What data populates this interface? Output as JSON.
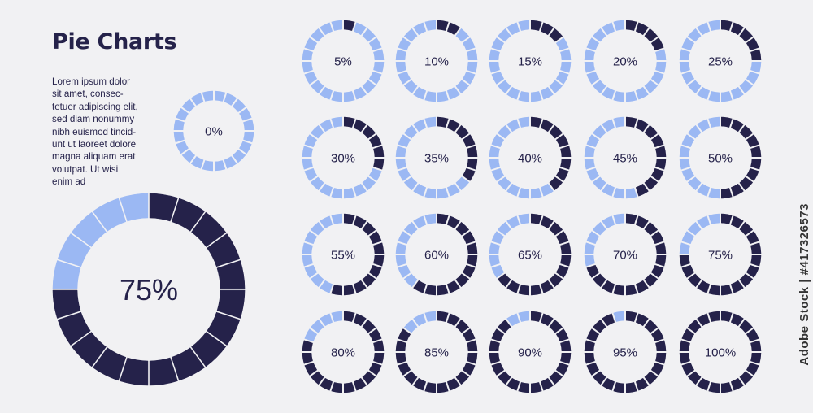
{
  "title": "Pie Charts",
  "body_text": "Lorem ipsum dolor\nsit amet, consec-\ntetuer adipiscing elit,\nsed diam nonummy\nnibh euismod tincid-\nunt ut laoreet dolore\nmagna aliquam erat\nvolutpat. Ut wisi\nenim ad",
  "watermark": "Adobe Stock | #417326573",
  "colors": {
    "filled": "#25224a",
    "empty": "#9bb8f3",
    "background": "#f1f1f3"
  },
  "chart_data": {
    "type": "pie",
    "segments_per_ring": 20,
    "charts": [
      {
        "value": 75,
        "label": "75%"
      },
      {
        "value": 0,
        "label": "0%"
      },
      {
        "value": 5,
        "label": "5%"
      },
      {
        "value": 10,
        "label": "10%"
      },
      {
        "value": 15,
        "label": "15%"
      },
      {
        "value": 20,
        "label": "20%"
      },
      {
        "value": 25,
        "label": "25%"
      },
      {
        "value": 30,
        "label": "30%"
      },
      {
        "value": 35,
        "label": "35%"
      },
      {
        "value": 40,
        "label": "40%"
      },
      {
        "value": 45,
        "label": "45%"
      },
      {
        "value": 50,
        "label": "50%"
      },
      {
        "value": 55,
        "label": "55%"
      },
      {
        "value": 60,
        "label": "60%"
      },
      {
        "value": 65,
        "label": "65%"
      },
      {
        "value": 70,
        "label": "70%"
      },
      {
        "value": 75,
        "label": "75%"
      },
      {
        "value": 80,
        "label": "80%"
      },
      {
        "value": 85,
        "label": "85%"
      },
      {
        "value": 90,
        "label": "90%"
      },
      {
        "value": 95,
        "label": "95%"
      },
      {
        "value": 100,
        "label": "100%"
      }
    ]
  }
}
